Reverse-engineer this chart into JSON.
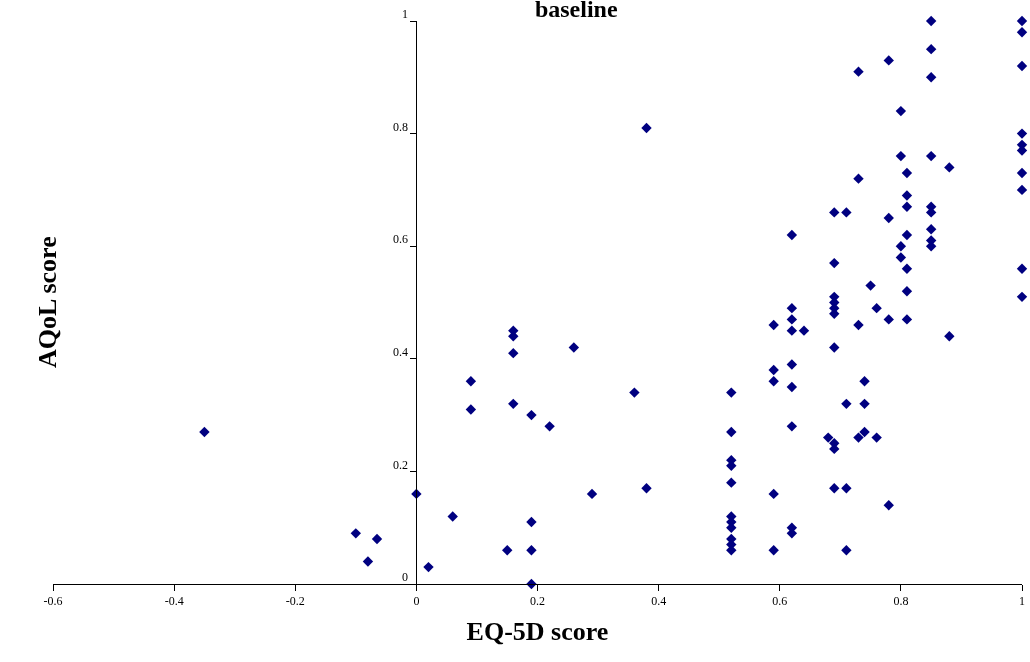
{
  "chart_data": {
    "type": "scatter",
    "title": "baseline",
    "xlabel": "EQ-5D score",
    "ylabel": "AQoL score",
    "xlim": [
      -0.6,
      1
    ],
    "xticks": [
      -0.6,
      -0.4,
      -0.2,
      0,
      0.2,
      0.4,
      0.6,
      0.8,
      1
    ],
    "ylim": [
      0,
      1
    ],
    "yticks": [
      0,
      0.2,
      0.4,
      0.6,
      0.8,
      1
    ],
    "marker": "diamond",
    "series": [
      {
        "color": "#000080",
        "x": [
          -0.35,
          -0.1,
          -0.08,
          -0.065,
          0,
          0.02,
          0.06,
          0.09,
          0.09,
          0.15,
          0.16,
          0.16,
          0.16,
          0.16,
          0.19,
          0.19,
          0.19,
          0.19,
          0.22,
          0.26,
          0.29,
          0.36,
          0.38,
          0.38,
          0.52,
          0.52,
          0.52,
          0.52,
          0.52,
          0.52,
          0.52,
          0.52,
          0.52,
          0.52,
          0.52,
          0.59,
          0.59,
          0.59,
          0.59,
          0.59,
          0.62,
          0.62,
          0.62,
          0.62,
          0.62,
          0.62,
          0.62,
          0.62,
          0.62,
          0.64,
          0.68,
          0.69,
          0.69,
          0.69,
          0.69,
          0.69,
          0.69,
          0.69,
          0.69,
          0.69,
          0.69,
          0.71,
          0.71,
          0.71,
          0.71,
          0.73,
          0.73,
          0.73,
          0.73,
          0.74,
          0.74,
          0.74,
          0.75,
          0.76,
          0.76,
          0.78,
          0.78,
          0.78,
          0.78,
          0.8,
          0.8,
          0.8,
          0.8,
          0.81,
          0.81,
          0.81,
          0.81,
          0.81,
          0.81,
          0.81,
          0.85,
          0.85,
          0.85,
          0.85,
          0.85,
          0.85,
          0.85,
          0.85,
          0.85,
          0.88,
          0.88,
          1,
          1,
          1,
          1,
          1,
          1,
          1,
          1,
          1,
          1
        ],
        "values": [
          0.27,
          0.09,
          0.04,
          0.08,
          0.16,
          0.03,
          0.12,
          0.36,
          0.31,
          0.06,
          0.45,
          0.44,
          0.41,
          0.32,
          0.3,
          0.11,
          0.06,
          0,
          0.28,
          0.42,
          0.16,
          0.34,
          0.81,
          0.17,
          0.34,
          0.27,
          0.22,
          0.21,
          0.18,
          0.12,
          0.11,
          0.1,
          0.08,
          0.07,
          0.06,
          0.46,
          0.38,
          0.36,
          0.16,
          0.06,
          0.62,
          0.49,
          0.47,
          0.45,
          0.39,
          0.35,
          0.28,
          0.1,
          0.09,
          0.45,
          0.26,
          0.66,
          0.57,
          0.51,
          0.5,
          0.49,
          0.48,
          0.42,
          0.25,
          0.24,
          0.17,
          0.66,
          0.32,
          0.17,
          0.06,
          0.91,
          0.72,
          0.46,
          0.26,
          0.36,
          0.32,
          0.27,
          0.53,
          0.49,
          0.26,
          0.93,
          0.65,
          0.47,
          0.14,
          0.84,
          0.76,
          0.6,
          0.58,
          0.73,
          0.69,
          0.67,
          0.62,
          0.56,
          0.52,
          0.47,
          1,
          0.95,
          0.9,
          0.76,
          0.67,
          0.66,
          0.63,
          0.61,
          0.6,
          0.74,
          0.44,
          1,
          0.98,
          0.92,
          0.8,
          0.78,
          0.77,
          0.73,
          0.7,
          0.56,
          0.51
        ]
      }
    ]
  }
}
